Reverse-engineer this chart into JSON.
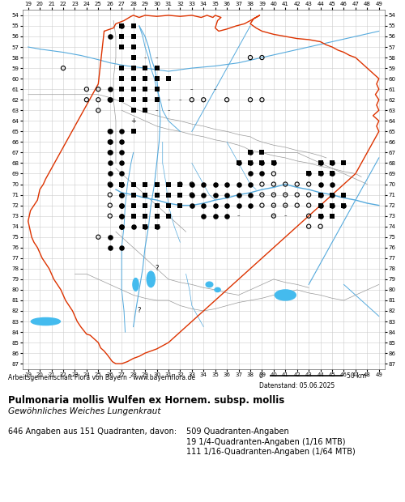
{
  "title_bold": "Pulmonaria mollis Wulfen ex Hornem. subsp. mollis",
  "title_italic": "Gewöhnliches Weiches Lungenkraut",
  "credit_line": "Arbeitsgemeinschaft Flora von Bayern - www.bayernflora.de",
  "date_text": "Datenstand: 05.06.2025",
  "stats_line1": "646 Angaben aus 151 Quadranten, davon:",
  "stats_col2_line1": "509 Quadranten-Angaben",
  "stats_col2_line2": "19 1/4-Quadranten-Angaben (1/16 MTB)",
  "stats_col2_line3": "111 1/16-Quadranten-Angaben (1/64 MTB)",
  "x_min": 19,
  "x_max": 49,
  "y_min": 54,
  "y_max": 87,
  "bg_color": "#ffffff",
  "grid_color": "#cccccc",
  "border_outer_color": "#dd3300",
  "border_inner_color": "#888888",
  "river_color": "#55aadd",
  "water_fill": "#44bbee"
}
